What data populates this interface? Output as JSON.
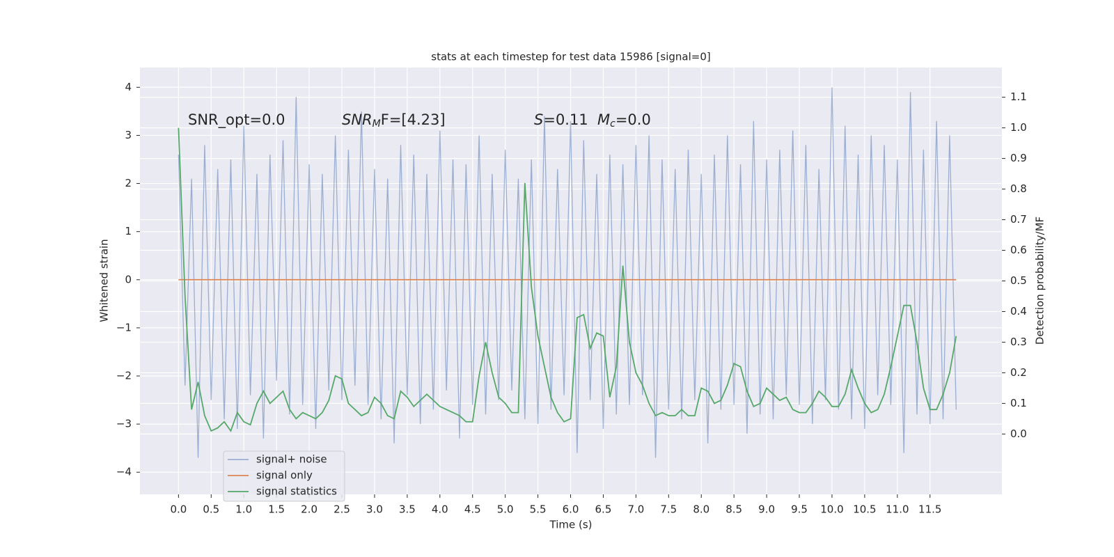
{
  "chart_data": {
    "type": "line",
    "title": "stats at each timestep for test data 15986 [signal=0]",
    "xlabel": "Time (s)",
    "ylabel": "Whitened strain",
    "y2label": "Detection probability/MF",
    "annotations": [
      {
        "parts": [
          "SNR_opt=0.0"
        ]
      },
      {
        "parts": [
          "SNR",
          "M",
          "F=[4.23]"
        ]
      },
      {
        "parts": [
          "S",
          "=0.11"
        ]
      },
      {
        "parts": [
          "M",
          "c",
          "=0.0"
        ]
      }
    ],
    "grid": true,
    "background": "#eaeaf2",
    "legend": "lower left",
    "xlim": [
      -0.59,
      12.6
    ],
    "ylim": [
      -4.46,
      4.41
    ],
    "y2lim": [
      -0.197,
      1.197
    ],
    "xticks": [
      {
        "value": 0,
        "label": "0.0"
      },
      0.5,
      {
        "value": 1,
        "label": "1.0"
      },
      1.5,
      {
        "value": 2,
        "label": "2.0"
      },
      2.5,
      {
        "value": 3,
        "label": "3.0"
      },
      3.5,
      {
        "value": 4,
        "label": "4.0"
      },
      4.5,
      {
        "value": 5,
        "label": "5.0"
      },
      5.5,
      {
        "value": 6,
        "label": "6.0"
      },
      6.5,
      {
        "value": 7,
        "label": "7.0"
      },
      7.5,
      {
        "value": 8,
        "label": "8.0"
      },
      8.5,
      {
        "value": 9,
        "label": "9.0"
      },
      9.5,
      {
        "value": 10,
        "label": "10.0"
      },
      10.5,
      {
        "value": 11,
        "label": "11.0"
      },
      11.5
    ],
    "yticks": [
      {
        "value": -4,
        "label": "−4"
      },
      {
        "value": -3,
        "label": "−3"
      },
      {
        "value": -2,
        "label": "−2"
      },
      {
        "value": -1,
        "label": "−1"
      },
      0,
      1,
      2,
      3,
      4
    ],
    "y2ticks": [
      {
        "value": 0,
        "label": "0.0"
      },
      0.1,
      0.2,
      0.3,
      0.4,
      0.5,
      0.6,
      0.7,
      0.8,
      0.9,
      {
        "value": 1,
        "label": "1.0"
      },
      1.1
    ],
    "x": [
      0,
      0.1,
      0.2,
      0.3,
      0.4,
      0.5,
      0.6,
      0.7,
      0.8,
      0.9,
      1,
      1.1,
      1.2,
      1.3,
      1.4,
      1.5,
      1.6,
      1.7,
      1.8,
      1.9,
      2,
      2.1,
      2.2,
      2.3,
      2.4,
      2.5,
      2.6,
      2.7,
      2.8,
      2.9,
      3,
      3.1,
      3.2,
      3.3,
      3.4,
      3.5,
      3.6,
      3.7,
      3.8,
      3.9,
      4,
      4.1,
      4.2,
      4.3,
      4.4,
      4.5,
      4.6,
      4.7,
      4.8,
      4.9,
      5,
      5.1,
      5.2,
      5.3,
      5.4,
      5.5,
      5.6,
      5.7,
      5.8,
      5.9,
      6,
      6.1,
      6.2,
      6.3,
      6.4,
      6.5,
      6.6,
      6.7,
      6.8,
      6.9,
      7,
      7.1,
      7.2,
      7.3,
      7.4,
      7.5,
      7.6,
      7.7,
      7.8,
      7.9,
      8,
      8.1,
      8.2,
      8.3,
      8.4,
      8.5,
      8.6,
      8.7,
      8.8,
      8.9,
      9,
      9.1,
      9.2,
      9.3,
      9.4,
      9.5,
      9.6,
      9.7,
      9.8,
      9.9,
      10,
      10.1,
      10.2,
      10.3,
      10.4,
      10.5,
      10.6,
      10.7,
      10.8,
      10.9,
      11,
      11.1,
      11.2,
      11.3,
      11.4,
      11.5,
      11.6,
      11.7,
      11.8,
      11.9
    ],
    "series": [
      {
        "name": "signal+ noise",
        "color": "#4c72b0",
        "values": [
          2.6,
          -2.2,
          2.1,
          -3.7,
          2.8,
          -2.5,
          2.3,
          -2.9,
          2.5,
          -3.1,
          3.2,
          -2.4,
          2.2,
          -3.3,
          2.6,
          -2.1,
          2.9,
          -2.8,
          3.8,
          -2.6,
          2.4,
          -3.1,
          2.2,
          -2.3,
          3.0,
          -2.5,
          2.7,
          -2.2,
          3.5,
          -2.6,
          2.3,
          -2.9,
          2.1,
          -3.4,
          2.8,
          -2.4,
          2.6,
          -3.0,
          2.2,
          -2.7,
          3.1,
          -2.3,
          2.5,
          -3.3,
          2.4,
          -2.6,
          3.0,
          -2.8,
          2.2,
          -2.5,
          2.7,
          -2.3,
          2.1,
          -2.9,
          2.5,
          -3.0,
          3.4,
          -2.7,
          2.3,
          -2.4,
          3.3,
          -3.6,
          2.9,
          -2.5,
          2.2,
          -3.1,
          2.6,
          -2.8,
          2.4,
          -2.6,
          2.8,
          -2.4,
          3.0,
          -3.7,
          2.5,
          -2.7,
          2.3,
          -2.9,
          2.7,
          -2.5,
          2.2,
          -3.4,
          2.6,
          -2.7,
          3.0,
          -2.6,
          2.4,
          -3.2,
          3.3,
          -2.8,
          2.5,
          -2.9,
          2.7,
          -2.4,
          3.1,
          -2.6,
          2.8,
          -3.0,
          2.3,
          -2.5,
          4.0,
          -2.7,
          3.2,
          -2.9,
          2.6,
          -3.1,
          3.0,
          -2.4,
          2.8,
          -2.6,
          2.5,
          -3.6,
          3.9,
          -2.8,
          2.7,
          -3.0,
          3.3,
          -2.9,
          3.0,
          -2.7
        ]
      },
      {
        "name": "signal only",
        "color": "#dd8452",
        "values": [
          0,
          0,
          0,
          0,
          0,
          0,
          0,
          0,
          0,
          0,
          0,
          0,
          0,
          0,
          0,
          0,
          0,
          0,
          0,
          0,
          0,
          0,
          0,
          0,
          0,
          0,
          0,
          0,
          0,
          0,
          0,
          0,
          0,
          0,
          0,
          0,
          0,
          0,
          0,
          0,
          0,
          0,
          0,
          0,
          0,
          0,
          0,
          0,
          0,
          0,
          0,
          0,
          0,
          0,
          0,
          0,
          0,
          0,
          0,
          0,
          0,
          0,
          0,
          0,
          0,
          0,
          0,
          0,
          0,
          0,
          0,
          0,
          0,
          0,
          0,
          0,
          0,
          0,
          0,
          0,
          0,
          0,
          0,
          0,
          0,
          0,
          0,
          0,
          0,
          0,
          0,
          0,
          0,
          0,
          0,
          0,
          0,
          0,
          0,
          0,
          0,
          0,
          0,
          0,
          0,
          0,
          0,
          0,
          0,
          0,
          0,
          0,
          0,
          0,
          0,
          0,
          0,
          0,
          0,
          0
        ]
      },
      {
        "name": "signal statistics",
        "color": "#55a868",
        "axis": "y2",
        "values": [
          1.0,
          0.45,
          0.08,
          0.17,
          0.06,
          0.01,
          0.02,
          0.04,
          0.01,
          0.07,
          0.04,
          0.03,
          0.1,
          0.14,
          0.1,
          0.12,
          0.14,
          0.08,
          0.05,
          0.07,
          0.06,
          0.05,
          0.07,
          0.11,
          0.19,
          0.18,
          0.1,
          0.08,
          0.06,
          0.07,
          0.12,
          0.1,
          0.06,
          0.05,
          0.14,
          0.12,
          0.09,
          0.11,
          0.13,
          0.11,
          0.09,
          0.08,
          0.07,
          0.06,
          0.04,
          0.04,
          0.19,
          0.3,
          0.2,
          0.12,
          0.1,
          0.07,
          0.07,
          0.82,
          0.48,
          0.32,
          0.22,
          0.12,
          0.07,
          0.04,
          0.05,
          0.38,
          0.39,
          0.28,
          0.33,
          0.32,
          0.12,
          0.22,
          0.55,
          0.3,
          0.2,
          0.16,
          0.1,
          0.06,
          0.07,
          0.06,
          0.06,
          0.08,
          0.06,
          0.06,
          0.15,
          0.14,
          0.1,
          0.11,
          0.16,
          0.23,
          0.22,
          0.14,
          0.09,
          0.1,
          0.15,
          0.13,
          0.11,
          0.12,
          0.08,
          0.07,
          0.07,
          0.1,
          0.14,
          0.12,
          0.09,
          0.09,
          0.13,
          0.21,
          0.15,
          0.1,
          0.07,
          0.08,
          0.13,
          0.22,
          0.32,
          0.42,
          0.42,
          0.3,
          0.15,
          0.08,
          0.08,
          0.13,
          0.2,
          0.32
        ]
      }
    ]
  }
}
